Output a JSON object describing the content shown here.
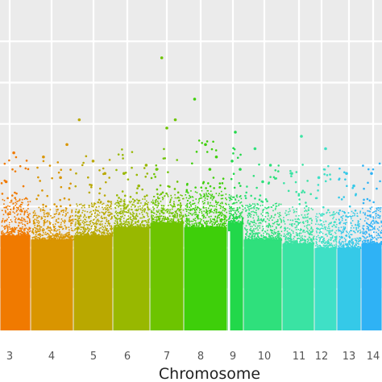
{
  "chart_data": {
    "type": "scatter",
    "subtype": "manhattan",
    "title": "",
    "xlabel": "Chromosome",
    "ylabel": "",
    "grid": true,
    "legend": "none",
    "panel_background": "#ebebeb",
    "grid_color": "#ffffff",
    "x_ticks": [
      "3",
      "4",
      "5",
      "6",
      "7",
      "8",
      "9",
      "10",
      "11",
      "12",
      "13",
      "14"
    ],
    "ylim": [
      0,
      8
    ],
    "chromosomes": [
      {
        "label": "3",
        "color": "#f07a00",
        "band_height": 2.3,
        "dense_height": 3.2,
        "outliers": [
          [
            0.2,
            3.6
          ],
          [
            0.45,
            4.3
          ]
        ]
      },
      {
        "label": "4",
        "color": "#d99500",
        "band_height": 2.2,
        "dense_height": 3.0,
        "outliers": [
          [
            0.3,
            4.2
          ],
          [
            0.7,
            3.7
          ],
          [
            0.85,
            4.5
          ]
        ]
      },
      {
        "label": "5",
        "color": "#b9a800",
        "band_height": 2.3,
        "dense_height": 3.1,
        "outliers": [
          [
            0.15,
            5.1
          ],
          [
            0.5,
            4.1
          ],
          [
            0.8,
            3.8
          ]
        ]
      },
      {
        "label": "6",
        "color": "#98b800",
        "band_height": 2.5,
        "dense_height": 3.2,
        "outliers": [
          [
            0.3,
            3.8
          ],
          [
            0.7,
            3.5
          ],
          [
            0.9,
            4.0
          ]
        ]
      },
      {
        "label": "7",
        "color": "#6dc400",
        "band_height": 2.6,
        "dense_height": 3.3,
        "outliers": [
          [
            0.35,
            6.6
          ],
          [
            0.5,
            4.9
          ],
          [
            0.75,
            5.1
          ],
          [
            0.2,
            3.9
          ]
        ]
      },
      {
        "label": "8",
        "color": "#3ecf0a",
        "band_height": 2.5,
        "dense_height": 3.4,
        "outliers": [
          [
            0.25,
            5.6
          ],
          [
            0.5,
            4.5
          ],
          [
            0.75,
            4.2
          ],
          [
            0.6,
            3.9
          ]
        ]
      },
      {
        "label": "9",
        "color": "#22d84a",
        "band_height": 2.6,
        "dense_height": 3.3,
        "outliers": [
          [
            0.5,
            4.8
          ],
          [
            0.3,
            4.1
          ],
          [
            0.8,
            3.9
          ]
        ]
      },
      {
        "label": "10",
        "color": "#2fe07c",
        "band_height": 2.2,
        "dense_height": 3.1,
        "outliers": [
          [
            0.3,
            4.4
          ],
          [
            0.7,
            4.0
          ],
          [
            0.5,
            3.6
          ]
        ]
      },
      {
        "label": "11",
        "color": "#3ae3a3",
        "band_height": 2.1,
        "dense_height": 3.0,
        "outliers": [
          [
            0.6,
            4.7
          ],
          [
            0.3,
            3.8
          ]
        ]
      },
      {
        "label": "12",
        "color": "#3fe0c6",
        "band_height": 2.0,
        "dense_height": 2.9,
        "outliers": [
          [
            0.5,
            4.4
          ],
          [
            0.2,
            3.7
          ]
        ]
      },
      {
        "label": "13",
        "color": "#35c9e8",
        "band_height": 2.0,
        "dense_height": 2.9,
        "outliers": [
          [
            0.4,
            3.8
          ],
          [
            0.7,
            3.5
          ]
        ]
      },
      {
        "label": "14",
        "color": "#2fb2f5",
        "band_height": 2.1,
        "dense_height": 3.0,
        "outliers": [
          [
            0.5,
            3.8
          ]
        ]
      }
    ]
  }
}
